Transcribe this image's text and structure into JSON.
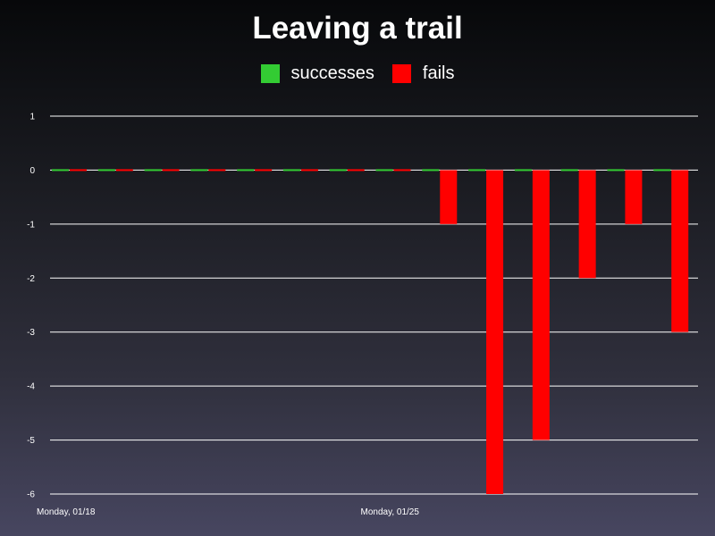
{
  "chart_data": {
    "type": "bar",
    "title": "Leaving a trail",
    "xlabel": "",
    "ylabel": "",
    "ylim": [
      -6,
      1
    ],
    "yticks": [
      1,
      0,
      -1,
      -2,
      -3,
      -4,
      -5,
      -6
    ],
    "grid": true,
    "legend_position": "top-center",
    "categories_count": 14,
    "x_tick_labels": [
      {
        "category_index": 0,
        "label": "Monday, 01/18"
      },
      {
        "category_index": 7,
        "label": "Monday, 01/25"
      }
    ],
    "series": [
      {
        "name": "successes",
        "color": "#33cc33",
        "values": [
          0,
          0,
          0,
          0,
          0,
          0,
          0,
          0,
          0,
          0,
          0,
          0,
          0,
          0
        ]
      },
      {
        "name": "fails",
        "color": "#ff0000",
        "values": [
          0,
          0,
          0,
          0,
          0,
          0,
          0,
          0,
          -1,
          -6,
          -5,
          -2,
          -1,
          -3
        ]
      }
    ]
  }
}
